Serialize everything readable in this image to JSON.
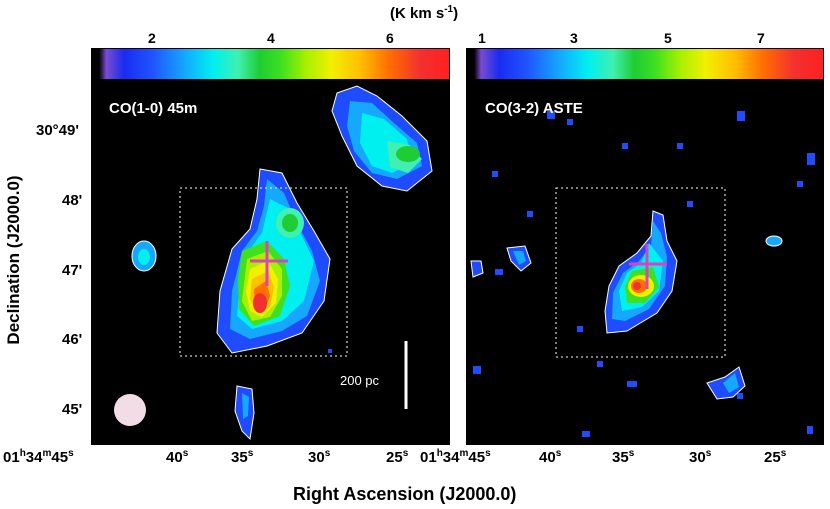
{
  "colorbar": {
    "unit": "(K km s",
    "unit_exp": "-1",
    "unit_close": ")",
    "left_ticks": [
      "2",
      "4",
      "6"
    ],
    "right_ticks": [
      "1",
      "3",
      "5",
      "7"
    ]
  },
  "panels": {
    "left_title": "CO(1-0) 45m",
    "right_title": "CO(3-2) ASTE",
    "scale_label": "200 pc"
  },
  "axes": {
    "ylabel": "Declination (J2000.0)",
    "xlabel": "Right Ascension (J2000.0)",
    "dec_ticks": [
      "30°49'",
      "48'",
      "47'",
      "46'",
      "45'"
    ],
    "ra_ticks_left": [
      "01h34m45s",
      "40s",
      "35s",
      "30s",
      "25s"
    ],
    "ra_ticks_right": [
      "01h34m45s",
      "40s",
      "35s",
      "30s",
      "25s"
    ]
  },
  "colors": {
    "marker": "#e040c0",
    "beam": "#f2dde6",
    "box": "#ffffff"
  }
}
